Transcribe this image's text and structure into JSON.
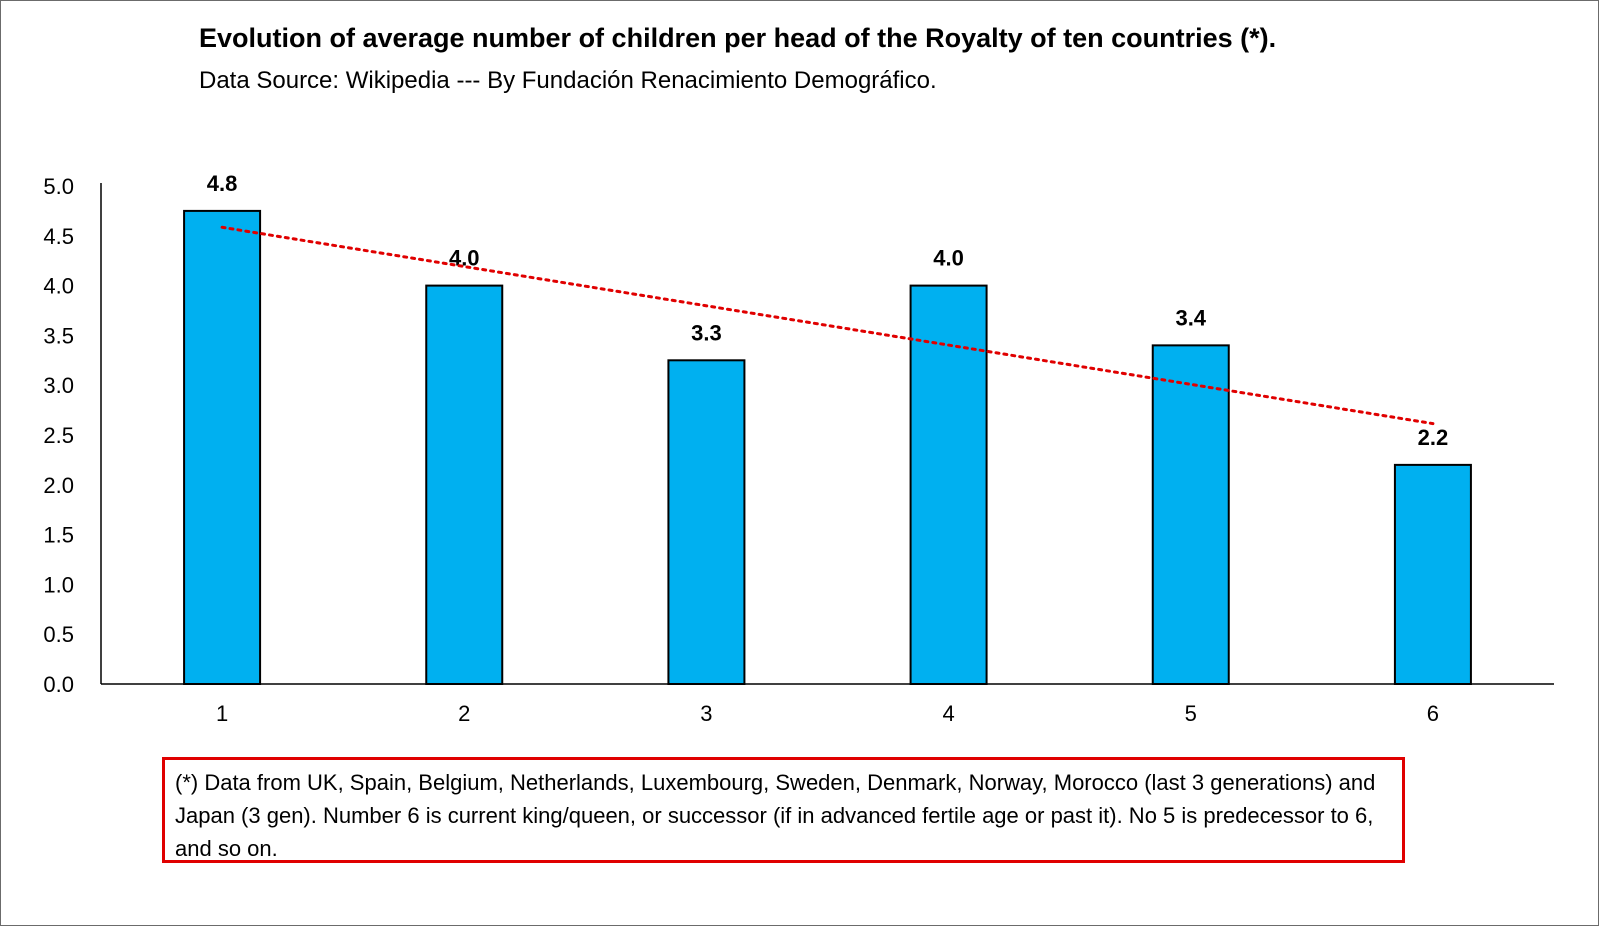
{
  "chart_data": {
    "type": "bar",
    "title": "Evolution of average number of children per head of the Royalty of ten countries (*).",
    "subtitle": "Data Source: Wikipedia --- By Fundación Renacimiento Demográfico.",
    "categories": [
      "1",
      "2",
      "3",
      "4",
      "5",
      "6"
    ],
    "values": [
      4.75,
      4.0,
      3.25,
      4.0,
      3.4,
      2.2
    ],
    "data_labels": [
      "4.8",
      "4.0",
      "3.3",
      "4.0",
      "3.4",
      "2.2"
    ],
    "y_ticks": [
      "0.0",
      "0.5",
      "1.0",
      "1.5",
      "2.0",
      "2.5",
      "3.0",
      "3.5",
      "4.0",
      "4.5",
      "5.0"
    ],
    "ylim": [
      0,
      5
    ],
    "xlabel": "",
    "ylabel": "",
    "trendline": {
      "type": "linear",
      "style": "dotted",
      "color": "#e00000"
    },
    "bar_color": "#00b0f0",
    "grid": false,
    "legend": "none"
  },
  "footnote": "(*) Data from UK, Spain, Belgium, Netherlands, Luxembourg, Sweden, Denmark, Norway, Morocco (last 3 generations) and Japan (3 gen). Number 6 is current king/queen, or successor (if in advanced fertile age or past it). No 5 is predecessor to 6, and so on.",
  "colors": {
    "bar": "#00b0f0",
    "trend": "#e00000",
    "footnote_border": "#e00000"
  }
}
